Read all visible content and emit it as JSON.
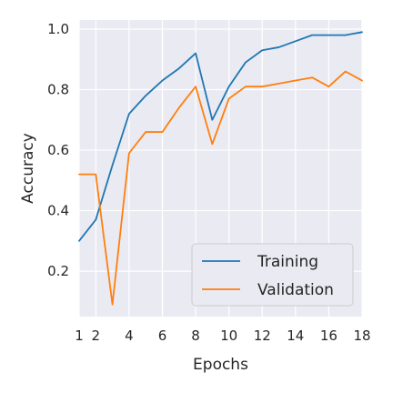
{
  "chart_data": {
    "type": "line",
    "title": "",
    "xlabel": "Epochs",
    "ylabel": "Accuracy",
    "xlim": [
      1,
      18
    ],
    "ylim": [
      0.05,
      1.03
    ],
    "x": [
      1,
      2,
      3,
      4,
      5,
      6,
      7,
      8,
      9,
      10,
      11,
      12,
      13,
      14,
      15,
      16,
      17,
      18
    ],
    "xticks": [
      1,
      2,
      4,
      6,
      8,
      10,
      12,
      14,
      16,
      18
    ],
    "xtick_labels": [
      "1",
      "2",
      "4",
      "6",
      "8",
      "10",
      "12",
      "14",
      "16",
      "18"
    ],
    "yticks": [
      0.2,
      0.4,
      0.6,
      0.8,
      1.0
    ],
    "ytick_labels": [
      "0.2",
      "0.4",
      "0.6",
      "0.8",
      "1.0"
    ],
    "grid": true,
    "legend_position": "bottom-right",
    "series": [
      {
        "name": "Training",
        "color": "#1f77b4",
        "values": [
          0.3,
          0.37,
          0.55,
          0.72,
          0.78,
          0.83,
          0.87,
          0.92,
          0.7,
          0.81,
          0.89,
          0.93,
          0.94,
          0.96,
          0.98,
          0.98,
          0.98,
          0.99
        ]
      },
      {
        "name": "Validation",
        "color": "#ff7f0e",
        "values": [
          0.52,
          0.52,
          0.09,
          0.59,
          0.66,
          0.66,
          0.74,
          0.81,
          0.62,
          0.77,
          0.81,
          0.81,
          0.82,
          0.83,
          0.84,
          0.81,
          0.86,
          0.83
        ]
      }
    ]
  }
}
